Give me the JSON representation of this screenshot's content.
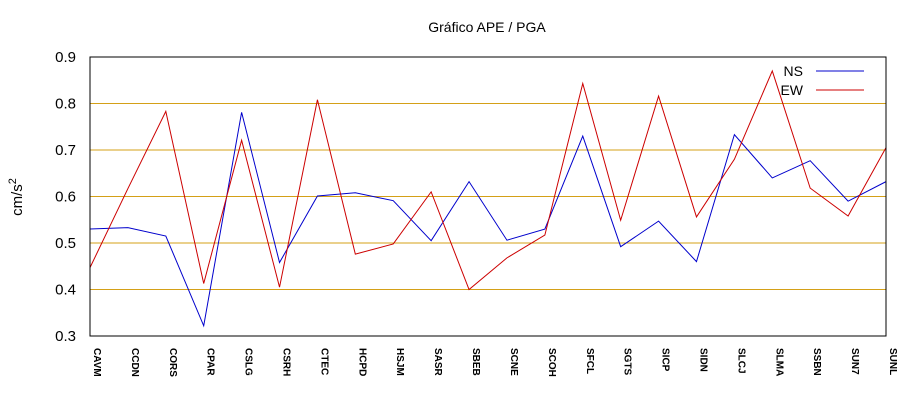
{
  "chart_data": {
    "type": "line",
    "title": "Gráfico  APE / PGA",
    "xlabel": "",
    "ylabel": "cm/s",
    "ylabel_superscript": "2",
    "ylim": [
      0.3,
      0.9
    ],
    "yticks": [
      "0.3",
      "0.4",
      "0.5",
      "0.6",
      "0.7",
      "0.8",
      "0.9"
    ],
    "grid": "horizontal",
    "legend_position": "top-right",
    "categories": [
      "CAVM",
      "CCDN",
      "CORS",
      "CPAR",
      "CSLG",
      "CSRH",
      "CTEC",
      "HCPD",
      "HSJM",
      "SASR",
      "SBEB",
      "SCNE",
      "SCOH",
      "SFCL",
      "SGTS",
      "SICP",
      "SIDN",
      "SLCJ",
      "SLMA",
      "SSBN",
      "SUN7",
      "SUNL"
    ],
    "series": [
      {
        "name": "NS",
        "color": "#0000cc",
        "values": [
          0.53,
          0.533,
          0.515,
          0.322,
          0.781,
          0.458,
          0.601,
          0.608,
          0.591,
          0.505,
          0.632,
          0.506,
          0.53,
          0.73,
          0.492,
          0.547,
          0.46,
          0.733,
          0.64,
          0.677,
          0.59,
          0.632
        ]
      },
      {
        "name": "EW",
        "color": "#cc0000",
        "values": [
          0.447,
          0.617,
          0.783,
          0.413,
          0.721,
          0.405,
          0.808,
          0.476,
          0.498,
          0.61,
          0.4,
          0.468,
          0.517,
          0.843,
          0.549,
          0.816,
          0.556,
          0.68,
          0.87,
          0.618,
          0.558,
          0.705
        ]
      }
    ]
  }
}
